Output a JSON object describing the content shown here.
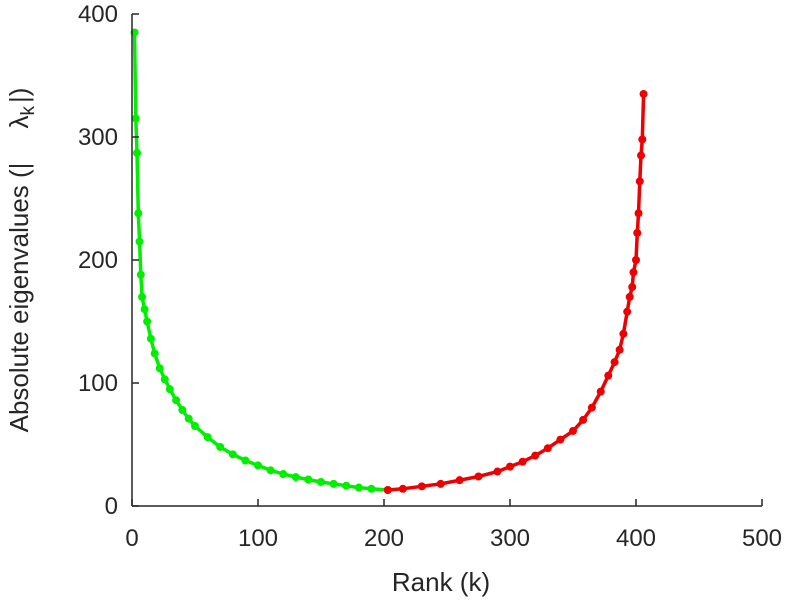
{
  "chart_data": {
    "type": "line",
    "title": "",
    "xlabel": "Rank (k)",
    "ylabel": {
      "main": "Absolute eigenvalues (|",
      "symbol": "λ",
      "subscript": "k",
      "close": "|)"
    },
    "xlim": [
      0,
      500
    ],
    "ylim": [
      0,
      400
    ],
    "xticks": [
      0,
      100,
      200,
      300,
      400,
      500
    ],
    "yticks": [
      0,
      100,
      200,
      300,
      400
    ],
    "grid": false,
    "legend": "none",
    "series": [
      {
        "color": "#00ee00",
        "x": [
          2,
          3,
          4,
          5,
          6,
          7,
          8,
          10,
          12,
          15,
          18,
          22,
          26,
          30,
          35,
          40,
          45,
          50,
          60,
          70,
          80,
          90,
          100,
          110,
          120,
          130,
          140,
          150,
          160,
          170,
          180,
          190,
          203
        ],
        "y": [
          385,
          315,
          287,
          238,
          215,
          188,
          170,
          160,
          150,
          136,
          124,
          112,
          103,
          95,
          86,
          78,
          71,
          65,
          56,
          48,
          42,
          37,
          33,
          29,
          26,
          23.5,
          21.5,
          19.5,
          18,
          16.5,
          15,
          14,
          13
        ]
      },
      {
        "color": "#ee0000",
        "x": [
          203,
          215,
          230,
          245,
          260,
          275,
          290,
          300,
          310,
          320,
          330,
          340,
          350,
          358,
          365,
          372,
          378,
          383,
          387,
          390,
          393,
          395,
          397,
          398,
          400,
          401,
          402,
          403,
          404,
          405,
          406
        ],
        "y": [
          13,
          14,
          16,
          18,
          21,
          24,
          28,
          32,
          36,
          41,
          47,
          54,
          61,
          70,
          80,
          93,
          106,
          117,
          127,
          140,
          158,
          170,
          178,
          190,
          200,
          222,
          238,
          264,
          285,
          298,
          335
        ]
      }
    ]
  }
}
